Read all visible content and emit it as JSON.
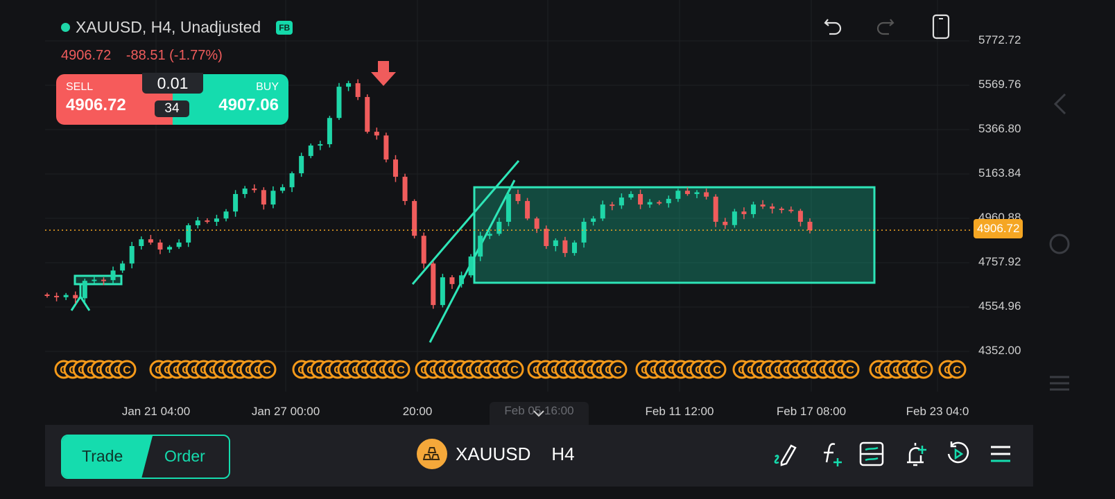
{
  "header": {
    "symbol_line": "XAUUSD, H4, Unadjusted",
    "badge": "FB",
    "last_price": "4906.72",
    "change": "-88.51 (-1.77%)"
  },
  "trade_panel": {
    "sell_label": "SELL",
    "sell_price": "4906.72",
    "buy_label": "BUY",
    "buy_price": "4907.06",
    "lot": "0.01",
    "spread": "34"
  },
  "toolbar_icons": [
    "undo-icon",
    "redo-icon",
    "phone-layout-icon"
  ],
  "price_axis": {
    "ticks": [
      "5772.72",
      "5569.76",
      "5366.80",
      "5163.84",
      "4960.88",
      "4757.92",
      "4554.96",
      "4352.00"
    ],
    "current": "4906.72"
  },
  "time_axis": {
    "labels": [
      "Jan 21 04:00",
      "Jan 27 00:00",
      "20:00",
      "Feb 11 12:00",
      "Feb 17 08:00",
      "Feb 23 04:0"
    ],
    "crosshair_label": "Feb 05 16:00"
  },
  "bottom_bar": {
    "trade": "Trade",
    "order": "Order",
    "symbol": "XAUUSD",
    "timeframe": "H4",
    "icons": [
      "drawing-icon",
      "indicator-icon",
      "template-icon",
      "add-alert-icon",
      "replay-icon",
      "menu-icon"
    ]
  },
  "colors": {
    "up": "#1fd6a8",
    "down": "#f05c5c",
    "current_price": "#f5a623",
    "background": "#121316",
    "event_marker": "#f59a1a"
  },
  "chart_data": {
    "type": "candlestick",
    "ylim": [
      4352.0,
      5772.72
    ],
    "current_price": 4906.72,
    "closes": [
      4606,
      4600,
      4610,
      4595,
      4675,
      4680,
      4678,
      4722,
      4754,
      4834,
      4865,
      4850,
      4818,
      4830,
      4850,
      4929,
      4951,
      4945,
      4960,
      4992,
      5072,
      5097,
      5090,
      5024,
      5087,
      5103,
      5167,
      5246,
      5294,
      5300,
      5420,
      5563,
      5579,
      5516,
      5357,
      5340,
      5230,
      5151,
      5040,
      4881,
      4754,
      4564,
      4691,
      4660,
      4700,
      4786,
      4881,
      4890,
      4945,
      5072,
      5040,
      4960,
      4913,
      4834,
      4860,
      4802,
      4850,
      4945,
      4960,
      5024,
      5020,
      5056,
      5072,
      5024,
      5035,
      5030,
      5050,
      5087,
      5072,
      5080,
      5060,
      4945,
      4930,
      4992,
      4980,
      5024,
      5015,
      5005,
      5000,
      4995,
      4945,
      4906.72
    ],
    "annotations": [
      {
        "type": "rectangle",
        "price_top": 5103,
        "price_bottom": 4666,
        "time_start": "Feb 02",
        "time_end": "Feb 20"
      },
      {
        "type": "channel"
      },
      {
        "type": "sell-arrow",
        "at": "Jan 29"
      }
    ]
  }
}
